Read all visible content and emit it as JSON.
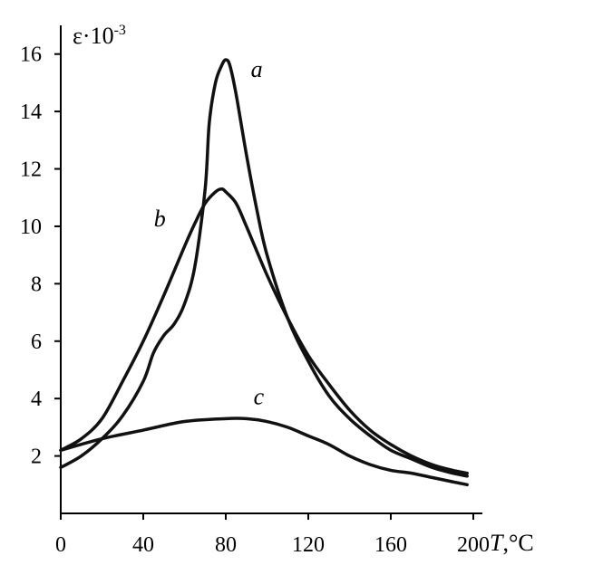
{
  "chart_data": {
    "type": "line",
    "title": "",
    "xlabel_italic": "T",
    "xlabel_unit": ",°C",
    "ylabel_base": "ε·10",
    "ylabel_exp": "-3",
    "xlim": [
      0,
      200
    ],
    "ylim": [
      0,
      17
    ],
    "grid": false,
    "legend": "none",
    "x_ticks": [
      0,
      40,
      80,
      120,
      160,
      200
    ],
    "y_ticks": [
      2,
      4,
      6,
      8,
      10,
      12,
      14,
      16
    ],
    "line_color": "#111111",
    "series": [
      {
        "name": "a",
        "x": [
          0,
          10,
          20,
          30,
          40,
          45,
          50,
          55,
          60,
          65,
          70,
          72,
          75,
          78,
          80,
          82,
          85,
          90,
          95,
          100,
          110,
          120,
          130,
          140,
          150,
          160,
          170,
          180,
          190,
          197
        ],
        "y": [
          1.6,
          2.0,
          2.6,
          3.4,
          4.6,
          5.6,
          6.2,
          6.6,
          7.3,
          8.6,
          11.3,
          13.6,
          15.0,
          15.6,
          15.8,
          15.6,
          14.6,
          12.5,
          10.6,
          9.0,
          6.8,
          5.3,
          4.1,
          3.3,
          2.7,
          2.2,
          1.9,
          1.6,
          1.4,
          1.3
        ]
      },
      {
        "name": "b",
        "x": [
          0,
          10,
          20,
          30,
          40,
          50,
          60,
          65,
          70,
          75,
          78,
          80,
          85,
          90,
          100,
          110,
          120,
          130,
          140,
          150,
          160,
          170,
          180,
          190,
          197
        ],
        "y": [
          2.2,
          2.6,
          3.3,
          4.6,
          6.0,
          7.6,
          9.3,
          10.1,
          10.8,
          11.2,
          11.3,
          11.2,
          10.8,
          10.0,
          8.3,
          6.8,
          5.5,
          4.5,
          3.6,
          2.9,
          2.4,
          2.0,
          1.7,
          1.5,
          1.4
        ]
      },
      {
        "name": "c",
        "x": [
          0,
          20,
          40,
          60,
          80,
          90,
          100,
          110,
          120,
          130,
          140,
          150,
          160,
          170,
          180,
          190,
          197
        ],
        "y": [
          2.2,
          2.6,
          2.9,
          3.2,
          3.3,
          3.3,
          3.2,
          3.0,
          2.7,
          2.4,
          2.0,
          1.7,
          1.5,
          1.4,
          1.25,
          1.1,
          1.0
        ]
      }
    ],
    "series_label_positions": {
      "a": [
        95,
        15.2
      ],
      "b": [
        48,
        10.0
      ],
      "c": [
        96,
        3.8
      ]
    }
  }
}
